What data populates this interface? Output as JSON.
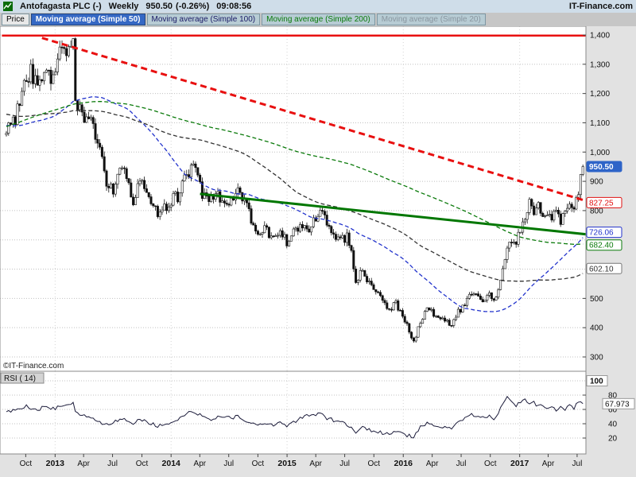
{
  "header": {
    "title": "Antofagasta PLC (-)",
    "timeframe": "Weekly",
    "last_price": "950.50",
    "change": "(-0.26%)",
    "time": "09:08:56",
    "brand": "IT-Finance.com"
  },
  "toolbar": {
    "buttons": [
      {
        "label": "Price",
        "text_color": "#000000",
        "bg": "#e8e8e8",
        "selected": false
      },
      {
        "label": "Moving average (Simple 50)",
        "text_color": "#ffffff",
        "bg": "#3568c4",
        "selected": true
      },
      {
        "label": "Moving average (Simple 100)",
        "text_color": "#1a1a66",
        "bg": "#b7ccd4",
        "selected": false
      },
      {
        "label": "Moving average (Simple 200)",
        "text_color": "#0a7a0a",
        "bg": "#b7ccd4",
        "selected": false
      },
      {
        "label": "Moving average (Simple 20)",
        "text_color": "#8a96a0",
        "bg": "#b7ccd4",
        "selected": false
      }
    ]
  },
  "watermark": "©IT-Finance.com",
  "price_axis": {
    "gridlines": [
      {
        "text": "1,400",
        "p": 1400
      },
      {
        "text": "1,300",
        "p": 1300
      },
      {
        "text": "1,200",
        "p": 1200
      },
      {
        "text": "1,100",
        "p": 1100
      },
      {
        "text": "1,000",
        "p": 1000
      },
      {
        "text": "900",
        "p": 900
      },
      {
        "text": "800",
        "p": 800
      },
      {
        "text": "500",
        "p": 500
      },
      {
        "text": "400",
        "p": 400
      },
      {
        "text": "300",
        "p": 300
      }
    ],
    "value_labels": [
      {
        "text": "950.50",
        "p": 950.5,
        "fg": "#ffffff",
        "bg": "#2e64c8",
        "border": "#2e64c8",
        "bold": true
      },
      {
        "text": "827.25",
        "p": 827.25,
        "fg": "#e01010",
        "bg": "#ffffff",
        "border": "#e01010",
        "bold": false
      },
      {
        "text": "726.06",
        "p": 726.06,
        "fg": "#2233cc",
        "bg": "#ffffff",
        "border": "#2233cc",
        "bold": false
      },
      {
        "text": "682.40",
        "p": 682.4,
        "fg": "#0a7a0a",
        "bg": "#ffffff",
        "border": "#0a7a0a",
        "bold": false
      },
      {
        "text": "602.10",
        "p": 602.1,
        "fg": "#333333",
        "bg": "#ffffff",
        "border": "#777777",
        "bold": false
      }
    ]
  },
  "x_axis": {
    "labels": [
      {
        "text": "Oct",
        "t": 8.7,
        "bold": false
      },
      {
        "text": "2013",
        "t": 21.9,
        "bold": true
      },
      {
        "text": "Apr",
        "t": 34.7,
        "bold": false
      },
      {
        "text": "Jul",
        "t": 47.7,
        "bold": false
      },
      {
        "text": "Oct",
        "t": 60.9,
        "bold": false
      },
      {
        "text": "2014",
        "t": 74.0,
        "bold": true
      },
      {
        "text": "Apr",
        "t": 86.9,
        "bold": false
      },
      {
        "text": "Jul",
        "t": 99.9,
        "bold": false
      },
      {
        "text": "Oct",
        "t": 113.0,
        "bold": false
      },
      {
        "text": "2015",
        "t": 126.1,
        "bold": true
      },
      {
        "text": "Apr",
        "t": 139.0,
        "bold": false
      },
      {
        "text": "Jul",
        "t": 152.0,
        "bold": false
      },
      {
        "text": "Oct",
        "t": 165.1,
        "bold": false
      },
      {
        "text": "2016",
        "t": 178.3,
        "bold": true
      },
      {
        "text": "Apr",
        "t": 191.3,
        "bold": false
      },
      {
        "text": "Jul",
        "t": 204.3,
        "bold": false
      },
      {
        "text": "Oct",
        "t": 217.4,
        "bold": false
      },
      {
        "text": "2017",
        "t": 230.6,
        "bold": true
      },
      {
        "text": "Apr",
        "t": 243.4,
        "bold": false
      },
      {
        "text": "Jul",
        "t": 256.4,
        "bold": false
      }
    ]
  },
  "rsi_panel": {
    "label": "RSI ( 14)",
    "max_label": "100",
    "current": "67.973",
    "axis": [
      {
        "text": "80",
        "v": 80
      },
      {
        "text": "60",
        "v": 60
      },
      {
        "text": "40",
        "v": 40
      },
      {
        "text": "20",
        "v": 20
      }
    ]
  },
  "chart_data": {
    "type": "candlestick",
    "title": "Antofagasta PLC (-) Weekly with simple moving averages 50/100/200 and RSI(14)",
    "timeframe": "weekly",
    "x_range_weeks": [
      0,
      259
    ],
    "price_axis_range": [
      270,
      1430
    ],
    "gridline_prices": [
      300,
      400,
      500,
      600,
      700,
      800,
      900,
      1000,
      1100,
      1200,
      1300,
      1400
    ],
    "last_close": 950.5,
    "price_anchors": [
      [
        0,
        1075
      ],
      [
        4,
        1120
      ],
      [
        8,
        1230
      ],
      [
        11,
        1275
      ],
      [
        14,
        1240
      ],
      [
        17,
        1290
      ],
      [
        20,
        1255
      ],
      [
        23,
        1310
      ],
      [
        26,
        1375
      ],
      [
        28,
        1335
      ],
      [
        30,
        1390
      ],
      [
        31,
        1180
      ],
      [
        33,
        1150
      ],
      [
        35,
        1080
      ],
      [
        38,
        1120
      ],
      [
        40,
        1050
      ],
      [
        43,
        980
      ],
      [
        45,
        905
      ],
      [
        48,
        870
      ],
      [
        50,
        915
      ],
      [
        53,
        950
      ],
      [
        55,
        880
      ],
      [
        57,
        830
      ],
      [
        60,
        900
      ],
      [
        63,
        870
      ],
      [
        66,
        820
      ],
      [
        68,
        790
      ],
      [
        71,
        812
      ],
      [
        74,
        832
      ],
      [
        77,
        850
      ],
      [
        80,
        900
      ],
      [
        84,
        950
      ],
      [
        86,
        915
      ],
      [
        88,
        860
      ],
      [
        91,
        840
      ],
      [
        95,
        862
      ],
      [
        98,
        820
      ],
      [
        101,
        842
      ],
      [
        104,
        862
      ],
      [
        107,
        840
      ],
      [
        110,
        762
      ],
      [
        113,
        722
      ],
      [
        116,
        752
      ],
      [
        119,
        712
      ],
      [
        123,
        740
      ],
      [
        126,
        692
      ],
      [
        129,
        722
      ],
      [
        132,
        760
      ],
      [
        135,
        732
      ],
      [
        139,
        772
      ],
      [
        141,
        800
      ],
      [
        144,
        760
      ],
      [
        147,
        732
      ],
      [
        150,
        692
      ],
      [
        153,
        712
      ],
      [
        155,
        652
      ],
      [
        157,
        562
      ],
      [
        160,
        592
      ],
      [
        163,
        552
      ],
      [
        166,
        532
      ],
      [
        169,
        492
      ],
      [
        172,
        462
      ],
      [
        175,
        482
      ],
      [
        178,
        432
      ],
      [
        181,
        392
      ],
      [
        183,
        352
      ],
      [
        186,
        422
      ],
      [
        189,
        462
      ],
      [
        191,
        452
      ],
      [
        194,
        432
      ],
      [
        197,
        422
      ],
      [
        200,
        412
      ],
      [
        203,
        452
      ],
      [
        206,
        482
      ],
      [
        209,
        512
      ],
      [
        212,
        502
      ],
      [
        215,
        492
      ],
      [
        217,
        512
      ],
      [
        219,
        482
      ],
      [
        221,
        542
      ],
      [
        224,
        622
      ],
      [
        226,
        700
      ],
      [
        228,
        682
      ],
      [
        230,
        722
      ],
      [
        233,
        782
      ],
      [
        235,
        820
      ],
      [
        237,
        792
      ],
      [
        239,
        812
      ],
      [
        241,
        782
      ],
      [
        243,
        802
      ],
      [
        245,
        772
      ],
      [
        247,
        792
      ],
      [
        249,
        762
      ],
      [
        251,
        782
      ],
      [
        253,
        802
      ],
      [
        255,
        822
      ],
      [
        257,
        862
      ],
      [
        259,
        950.5
      ]
    ],
    "prehistory_anchors": [
      [
        -220,
        420
      ],
      [
        -205,
        520
      ],
      [
        -190,
        680
      ],
      [
        -175,
        860
      ],
      [
        -160,
        980
      ],
      [
        -148,
        1100
      ],
      [
        -138,
        1260
      ],
      [
        -128,
        1320
      ],
      [
        -120,
        1350
      ],
      [
        -112,
        1300
      ],
      [
        -105,
        1120
      ],
      [
        -96,
        1260
      ],
      [
        -86,
        1150
      ],
      [
        -76,
        1260
      ],
      [
        -66,
        1140
      ],
      [
        -56,
        1050
      ],
      [
        -46,
        1120
      ],
      [
        -36,
        1170
      ],
      [
        -26,
        1080
      ],
      [
        -16,
        1020
      ],
      [
        -8,
        1060
      ],
      [
        -1,
        1072
      ]
    ],
    "moving_averages": [
      {
        "period": 50,
        "color": "#2233cc",
        "dash": "5,3",
        "end_value": 726.06
      },
      {
        "period": 100,
        "color": "#333333",
        "dash": "5,3",
        "end_value": 602.1
      },
      {
        "period": 200,
        "color": "#0a7a0a",
        "dash": "5,3",
        "end_value": 682.4
      }
    ],
    "hidden_indicators": [
      {
        "name": "Moving average (Simple 20)"
      }
    ],
    "trendlines": [
      {
        "name": "horizontal-resistance-line",
        "color": "#e81010",
        "dash": null,
        "width": 2.5,
        "p1": [
          -2,
          1398
        ],
        "p2": [
          263,
          1398
        ]
      },
      {
        "name": "descending-resistance-line",
        "color": "#e81010",
        "dash": "8,5",
        "width": 3,
        "p1": [
          16,
          1390
        ],
        "p2": [
          263,
          827.25
        ]
      },
      {
        "name": "support-trendline",
        "color": "#007700",
        "dash": null,
        "width": 3,
        "p1": [
          87,
          857
        ],
        "p2": [
          263,
          717
        ]
      }
    ],
    "rsi": {
      "period": 14,
      "current": 67.973,
      "range": [
        0,
        100
      ],
      "anchors": [
        [
          0,
          55
        ],
        [
          5,
          60
        ],
        [
          9,
          65
        ],
        [
          13,
          59
        ],
        [
          17,
          63
        ],
        [
          22,
          61
        ],
        [
          26,
          67
        ],
        [
          30,
          70
        ],
        [
          31,
          56
        ],
        [
          35,
          52
        ],
        [
          40,
          45
        ],
        [
          45,
          38
        ],
        [
          50,
          44
        ],
        [
          53,
          48
        ],
        [
          57,
          40
        ],
        [
          60,
          46
        ],
        [
          64,
          42
        ],
        [
          68,
          36
        ],
        [
          72,
          40
        ],
        [
          76,
          45
        ],
        [
          80,
          52
        ],
        [
          84,
          58
        ],
        [
          88,
          50
        ],
        [
          92,
          46
        ],
        [
          96,
          50
        ],
        [
          100,
          48
        ],
        [
          104,
          50
        ],
        [
          108,
          44
        ],
        [
          112,
          38
        ],
        [
          116,
          42
        ],
        [
          120,
          38
        ],
        [
          124,
          42
        ],
        [
          126,
          36
        ],
        [
          130,
          44
        ],
        [
          134,
          50
        ],
        [
          138,
          52
        ],
        [
          141,
          55
        ],
        [
          144,
          48
        ],
        [
          148,
          44
        ],
        [
          152,
          40
        ],
        [
          155,
          36
        ],
        [
          157,
          28
        ],
        [
          160,
          34
        ],
        [
          163,
          31
        ],
        [
          166,
          30
        ],
        [
          169,
          27
        ],
        [
          172,
          25
        ],
        [
          175,
          30
        ],
        [
          178,
          26
        ],
        [
          181,
          23
        ],
        [
          183,
          21
        ],
        [
          186,
          35
        ],
        [
          189,
          42
        ],
        [
          191,
          40
        ],
        [
          194,
          37
        ],
        [
          197,
          36
        ],
        [
          200,
          35
        ],
        [
          203,
          42
        ],
        [
          206,
          47
        ],
        [
          209,
          52
        ],
        [
          212,
          50
        ],
        [
          215,
          48
        ],
        [
          217,
          50
        ],
        [
          219,
          46
        ],
        [
          221,
          56
        ],
        [
          223,
          66
        ],
        [
          225,
          79
        ],
        [
          227,
          70
        ],
        [
          229,
          66
        ],
        [
          231,
          70
        ],
        [
          233,
          73
        ],
        [
          235,
          68
        ],
        [
          237,
          70
        ],
        [
          239,
          64
        ],
        [
          241,
          67
        ],
        [
          243,
          62
        ],
        [
          245,
          65
        ],
        [
          247,
          59
        ],
        [
          249,
          63
        ],
        [
          251,
          60
        ],
        [
          253,
          65
        ],
        [
          255,
          62
        ],
        [
          257,
          70
        ],
        [
          259,
          67.973
        ]
      ]
    }
  },
  "colors": {
    "titlebar_bg": "#cfdde9",
    "toolbar_bg": "#c6c6c6",
    "panel_bg": "#ffffff",
    "strip_bg": "#e2e2e2",
    "grid": "#c0c0c0",
    "frame": "#8a8a8a",
    "candle_up": "#ffffff",
    "candle_down": "#111111",
    "candle_stroke": "#111111",
    "rsi_line": "#1b1b3a",
    "last_price_bg": "#2e64c8"
  }
}
